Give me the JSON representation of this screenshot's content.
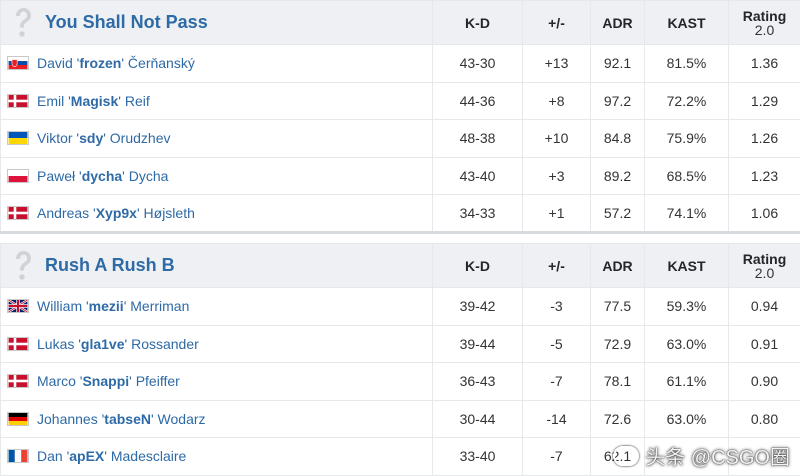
{
  "headers": {
    "kd": "K-D",
    "pm": "+/-",
    "adr": "ADR",
    "kast": "KAST",
    "rating": "Rating",
    "rating_ver": "2.0"
  },
  "team_a": {
    "name": "You Shall Not Pass",
    "players": [
      {
        "flag": "sk",
        "first": "David '",
        "nick": "frozen",
        "last": "' Čerňanský",
        "kd": "43-30",
        "pm": "+13",
        "pm_sign": "pos",
        "adr": "92.1",
        "kast": "81.5%",
        "rating": "1.36"
      },
      {
        "flag": "dk",
        "first": "Emil '",
        "nick": "Magisk",
        "last": "' Reif",
        "kd": "44-36",
        "pm": "+8",
        "pm_sign": "pos",
        "adr": "97.2",
        "kast": "72.2%",
        "rating": "1.29"
      },
      {
        "flag": "ua",
        "first": "Viktor '",
        "nick": "sdy",
        "last": "' Orudzhev",
        "kd": "48-38",
        "pm": "+10",
        "pm_sign": "pos",
        "adr": "84.8",
        "kast": "75.9%",
        "rating": "1.26"
      },
      {
        "flag": "pl",
        "first": "Paweł '",
        "nick": "dycha",
        "last": "' Dycha",
        "kd": "43-40",
        "pm": "+3",
        "pm_sign": "pos",
        "adr": "89.2",
        "kast": "68.5%",
        "rating": "1.23"
      },
      {
        "flag": "dk",
        "first": "Andreas '",
        "nick": "Xyp9x",
        "last": "' Højsleth",
        "kd": "34-33",
        "pm": "+1",
        "pm_sign": "pos",
        "adr": "57.2",
        "kast": "74.1%",
        "rating": "1.06"
      }
    ]
  },
  "team_b": {
    "name": "Rush A Rush B",
    "players": [
      {
        "flag": "gb",
        "first": "William '",
        "nick": "mezii",
        "last": "' Merriman",
        "kd": "39-42",
        "pm": "-3",
        "pm_sign": "neg",
        "adr": "77.5",
        "kast": "59.3%",
        "rating": "0.94"
      },
      {
        "flag": "dk",
        "first": "Lukas '",
        "nick": "gla1ve",
        "last": "' Rossander",
        "kd": "39-44",
        "pm": "-5",
        "pm_sign": "neg",
        "adr": "72.9",
        "kast": "63.0%",
        "rating": "0.91"
      },
      {
        "flag": "dk",
        "first": "Marco '",
        "nick": "Snappi",
        "last": "' Pfeiffer",
        "kd": "36-43",
        "pm": "-7",
        "pm_sign": "neg",
        "adr": "78.1",
        "kast": "61.1%",
        "rating": "0.90"
      },
      {
        "flag": "de",
        "first": "Johannes '",
        "nick": "tabseN",
        "last": "' Wodarz",
        "kd": "30-44",
        "pm": "-14",
        "pm_sign": "neg",
        "adr": "72.6",
        "kast": "63.0%",
        "rating": "0.80"
      },
      {
        "flag": "fr",
        "first": "Dan '",
        "nick": "apEX",
        "last": "' Madesclaire",
        "kd": "33-40",
        "pm": "-7",
        "pm_sign": "neg",
        "adr": "62.1",
        "kast": "",
        "rating": ""
      }
    ]
  },
  "watermark": "头条 @CSGO圈"
}
